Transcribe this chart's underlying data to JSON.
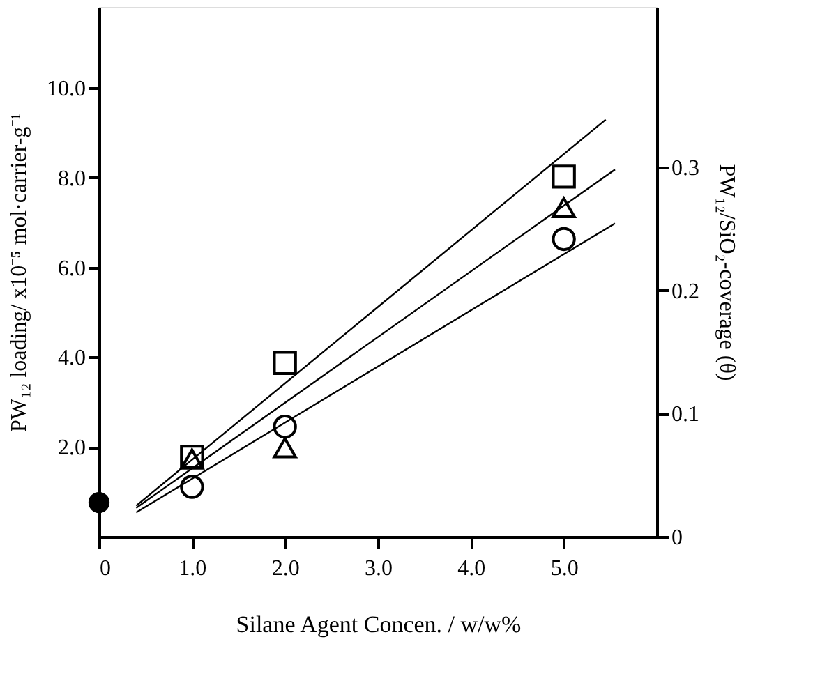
{
  "chart_data": {
    "type": "scatter",
    "xlabel": "Silane Agent Concen. / w/w%",
    "ylabel": "PW₁₂ loading/ x10⁻⁵ mol·carrier-g⁻¹",
    "y2label": "PW₁₂/SiO₂-coverage (θ)",
    "xlim": [
      0,
      6.0
    ],
    "xticks": [
      0,
      {
        "value": 1,
        "label": "1.0"
      },
      {
        "value": 2,
        "label": "2.0"
      },
      {
        "value": 3,
        "label": "3.0"
      },
      {
        "value": 4,
        "label": "4.0"
      },
      {
        "value": 5,
        "label": "5.0"
      }
    ],
    "ylim": [
      0,
      11.8
    ],
    "yticks": [
      {
        "value": 2,
        "label": "2.0"
      },
      {
        "value": 4,
        "label": "4.0"
      },
      {
        "value": 6,
        "label": "6.0"
      },
      {
        "value": 8,
        "label": "8.0"
      },
      {
        "value": 10,
        "label": "10.0"
      }
    ],
    "y2lim": [
      0,
      0.43
    ],
    "y2ticks": [
      0,
      0.1,
      0.2,
      0.3
    ],
    "grid": false,
    "series": [
      {
        "type": "line",
        "color": "#000000",
        "x": [
          0.4,
          5.45
        ],
        "values": [
          0.69,
          9.29
        ],
        "line_style": "solid",
        "marker": "none"
      },
      {
        "type": "line",
        "color": "#000000",
        "x": [
          0.4,
          5.55
        ],
        "values": [
          0.64,
          8.18
        ],
        "line_style": "solid",
        "marker": "none"
      },
      {
        "type": "line",
        "color": "#000000",
        "x": [
          0.4,
          5.55
        ],
        "values": [
          0.54,
          6.98
        ],
        "line_style": "solid",
        "marker": "none"
      },
      {
        "color": "#000000",
        "x": [
          1,
          2,
          5
        ],
        "values": [
          1.78,
          3.87,
          8.02
        ],
        "marker": "square"
      },
      {
        "color": "#000000",
        "x": [
          1,
          2,
          5
        ],
        "values": [
          1.73,
          1.98,
          7.33
        ],
        "marker": "triangle"
      },
      {
        "color": "#000000",
        "x": [
          1,
          2,
          5
        ],
        "values": [
          1.11,
          2.45,
          6.63
        ],
        "marker": "circle"
      },
      {
        "color": "#000000",
        "x": [
          0
        ],
        "values": [
          0.76
        ],
        "marker": "circle"
      }
    ]
  }
}
